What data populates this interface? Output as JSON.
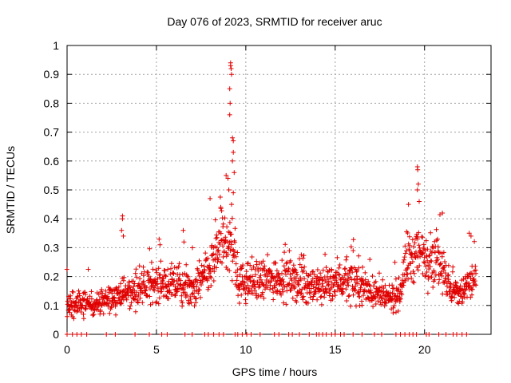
{
  "chart_data": {
    "type": "scatter",
    "title": "Day 076 of 2023, SRMTID for receiver aruc",
    "xlabel": "GPS time / hours",
    "ylabel": "SRMTID / TECUs",
    "xlim": [
      0,
      23.72
    ],
    "ylim": [
      0,
      1
    ],
    "grid": true,
    "marker": "+",
    "color": "#e00000",
    "x_ticks": [
      0,
      5,
      10,
      15,
      20
    ],
    "x_tick_labels": [
      "0",
      "5",
      "10",
      "15",
      "20"
    ],
    "y_ticks": [
      0,
      0.1,
      0.2,
      0.3,
      0.4,
      0.5,
      0.6,
      0.7,
      0.8,
      0.9,
      1
    ],
    "y_tick_labels": [
      "0",
      "0.1",
      "0.2",
      "0.3",
      "0.4",
      "0.5",
      "0.6",
      "0.7",
      "0.8",
      "0.9",
      "1"
    ],
    "series": [
      {
        "name": "SRMTID",
        "x_range_hours": [
          0,
          22.9
        ],
        "baseline_trend": [
          [
            0.0,
            0.11
          ],
          [
            1.0,
            0.1
          ],
          [
            2.0,
            0.11
          ],
          [
            3.0,
            0.14
          ],
          [
            4.0,
            0.15
          ],
          [
            5.0,
            0.18
          ],
          [
            6.0,
            0.17
          ],
          [
            7.0,
            0.15
          ],
          [
            8.0,
            0.22
          ],
          [
            8.6,
            0.32
          ],
          [
            9.2,
            0.32
          ],
          [
            9.6,
            0.18
          ],
          [
            10.5,
            0.18
          ],
          [
            12.0,
            0.2
          ],
          [
            13.0,
            0.18
          ],
          [
            14.0,
            0.16
          ],
          [
            15.0,
            0.19
          ],
          [
            16.0,
            0.18
          ],
          [
            17.0,
            0.15
          ],
          [
            18.0,
            0.12
          ],
          [
            18.6,
            0.14
          ],
          [
            19.0,
            0.26
          ],
          [
            20.0,
            0.28
          ],
          [
            21.0,
            0.25
          ],
          [
            21.4,
            0.15
          ],
          [
            22.0,
            0.14
          ],
          [
            22.9,
            0.2
          ]
        ],
        "notable_points": [
          {
            "x": 3.1,
            "y": 0.41
          },
          {
            "x": 3.1,
            "y": 0.4
          },
          {
            "x": 3.05,
            "y": 0.36
          },
          {
            "x": 3.15,
            "y": 0.34
          },
          {
            "x": 5.2,
            "y": 0.31
          },
          {
            "x": 6.5,
            "y": 0.36
          },
          {
            "x": 8.0,
            "y": 0.47
          },
          {
            "x": 8.6,
            "y": 0.44
          },
          {
            "x": 8.9,
            "y": 0.55
          },
          {
            "x": 9.0,
            "y": 0.54
          },
          {
            "x": 9.05,
            "y": 0.5
          },
          {
            "x": 9.1,
            "y": 0.85
          },
          {
            "x": 9.12,
            "y": 0.8
          },
          {
            "x": 9.1,
            "y": 0.76
          },
          {
            "x": 9.15,
            "y": 0.94
          },
          {
            "x": 9.15,
            "y": 0.93
          },
          {
            "x": 9.18,
            "y": 0.92
          },
          {
            "x": 9.2,
            "y": 0.9
          },
          {
            "x": 9.25,
            "y": 0.68
          },
          {
            "x": 9.3,
            "y": 0.67
          },
          {
            "x": 9.3,
            "y": 0.63
          },
          {
            "x": 9.25,
            "y": 0.6
          },
          {
            "x": 9.35,
            "y": 0.56
          },
          {
            "x": 9.3,
            "y": 0.49
          },
          {
            "x": 9.2,
            "y": 0.45
          },
          {
            "x": 19.1,
            "y": 0.45
          },
          {
            "x": 19.6,
            "y": 0.58
          },
          {
            "x": 19.62,
            "y": 0.57
          },
          {
            "x": 19.65,
            "y": 0.52
          },
          {
            "x": 19.6,
            "y": 0.5
          },
          {
            "x": 19.7,
            "y": 0.46
          },
          {
            "x": 21.0,
            "y": 0.42
          },
          {
            "x": 22.5,
            "y": 0.35
          },
          {
            "x": 22.6,
            "y": 0.34
          }
        ],
        "zero_points_x": [
          0.0,
          0.3,
          0.55,
          0.8,
          1.1,
          2.2,
          2.7,
          3.8,
          4.6,
          5.3,
          5.6,
          6.6,
          7.0,
          7.7,
          7.9,
          8.2,
          8.5,
          8.75,
          9.4,
          9.55,
          9.8,
          10.05,
          10.3,
          10.8,
          11.6,
          11.85,
          12.4,
          12.6,
          13.0,
          13.55,
          13.95,
          14.1,
          14.3,
          14.5,
          14.8,
          15.0,
          15.3,
          15.5,
          16.0,
          16.5,
          17.2,
          17.6,
          18.4,
          18.65,
          18.9,
          19.15,
          19.35,
          19.55,
          20.1,
          20.25,
          20.8,
          21.2,
          21.6,
          21.8,
          22.1,
          22.35
        ]
      }
    ]
  }
}
